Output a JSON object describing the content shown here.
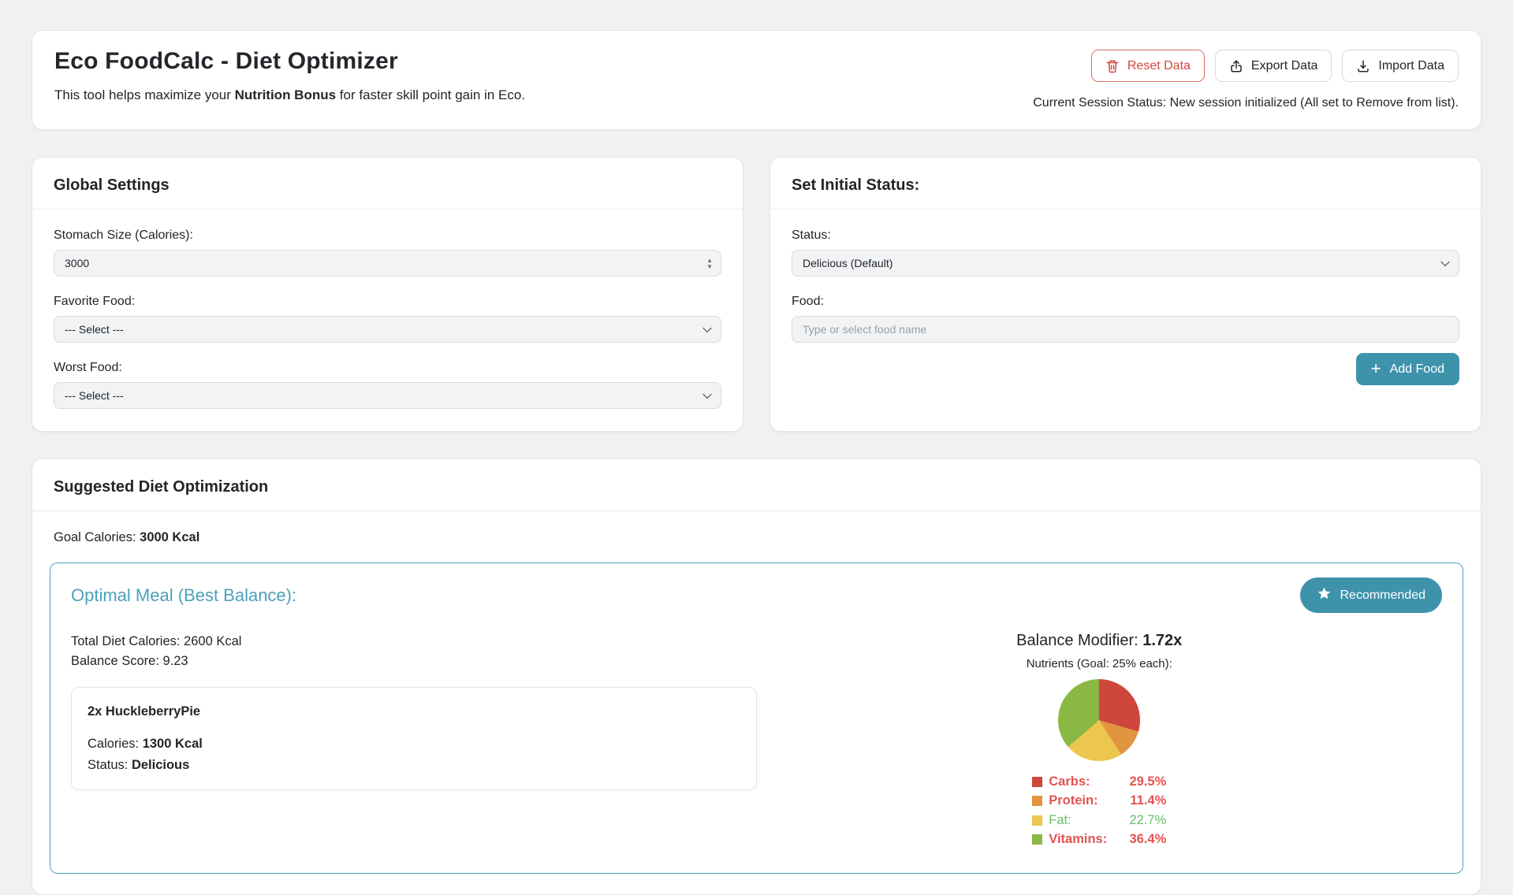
{
  "header": {
    "title": "Eco FoodCalc - Diet Optimizer",
    "subtitle_prefix": "This tool helps maximize your ",
    "subtitle_bold": "Nutrition Bonus",
    "subtitle_suffix": " for faster skill point gain in Eco.",
    "buttons": {
      "reset": "Reset Data",
      "export": "Export Data",
      "import": "Import Data"
    },
    "session_status": "Current Session Status: New session initialized (All set to Remove from list)."
  },
  "global_settings": {
    "title": "Global Settings",
    "stomach_label": "Stomach Size (Calories):",
    "stomach_value": "3000",
    "favorite_label": "Favorite Food:",
    "favorite_value": "--- Select ---",
    "worst_label": "Worst Food:",
    "worst_value": "--- Select ---"
  },
  "initial_status": {
    "title": "Set Initial Status:",
    "status_label": "Status:",
    "status_value": "Delicious (Default)",
    "food_label": "Food:",
    "food_placeholder": "Type or select food name",
    "add_food_label": "Add Food"
  },
  "suggestion": {
    "title": "Suggested Diet Optimization",
    "goal_label": "Goal Calories: ",
    "goal_value": "3000 Kcal",
    "optimal": {
      "heading": "Optimal Meal (Best Balance):",
      "badge": "Recommended",
      "total_calories": "Total Diet Calories: 2600 Kcal",
      "balance_score": "Balance Score: 9.23",
      "meal": {
        "name": "2x HuckleberryPie",
        "calories_label": "Calories: ",
        "calories_value": "1300 Kcal",
        "status_label": "Status: ",
        "status_value": "Delicious"
      },
      "modifier_label": "Balance Modifier: ",
      "modifier_value": "1.72x",
      "nutrients_caption": "Nutrients (Goal: 25% each):"
    }
  },
  "chart_data": {
    "type": "pie",
    "title": "Nutrients (Goal: 25% each):",
    "labels": [
      "Carbs",
      "Protein",
      "Fat",
      "Vitamins"
    ],
    "values": [
      29.5,
      11.4,
      22.7,
      36.4
    ],
    "unit": "%",
    "colors": [
      "#cf463c",
      "#e2953f",
      "#ecc64f",
      "#8bb844"
    ],
    "legend_text_colors": [
      "#e25352",
      "#e25352",
      "#64bd6a",
      "#e25352"
    ],
    "legend_bold": [
      true,
      true,
      false,
      true
    ],
    "legend_position": "bottom",
    "start_angle_deg": 0,
    "direction": "clockwise"
  },
  "colors": {
    "accent_teal": "#3e93ab",
    "panel_border_teal": "#4ba1ba",
    "danger_red": "#d2473d",
    "page_bg": "#eff1f3"
  }
}
